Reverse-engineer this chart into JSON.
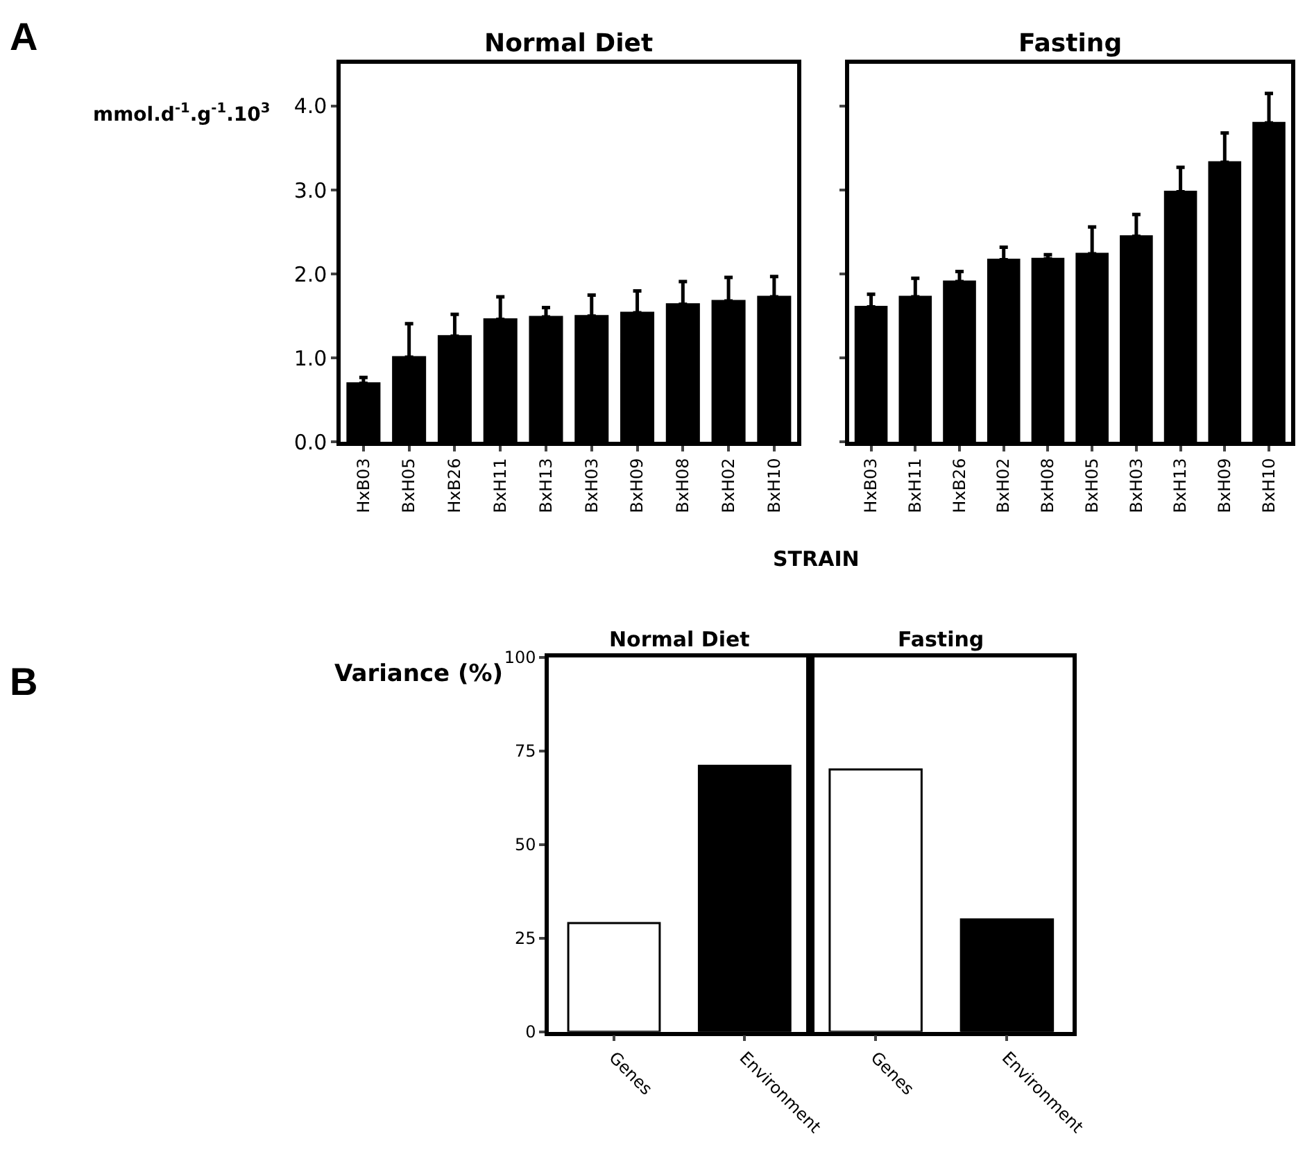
{
  "chart_data": [
    {
      "type": "bar",
      "title": "Normal Diet",
      "ylabel": "mmol.d$^{-1}$.g$^{-1}$.10$^{3}$",
      "xlabel": "STRAIN",
      "annotations": [
        "A"
      ],
      "categories": [
        "HxB03",
        "BxH05",
        "HxB26",
        "BxH11",
        "BxH13",
        "BxH03",
        "BxH09",
        "BxH08",
        "BxH02",
        "BxH10"
      ],
      "values": [
        0.7,
        1.01,
        1.26,
        1.46,
        1.49,
        1.5,
        1.54,
        1.64,
        1.68,
        1.73
      ],
      "errors": [
        [
          0.7,
          0.77
        ],
        [
          1.01,
          1.41
        ],
        [
          1.26,
          1.52
        ],
        [
          1.46,
          1.73
        ],
        [
          1.49,
          1.6
        ],
        [
          1.5,
          1.75
        ],
        [
          1.54,
          1.8
        ],
        [
          1.64,
          1.91
        ],
        [
          1.68,
          1.96
        ],
        [
          1.73,
          1.97
        ]
      ],
      "color": "#000000",
      "ylim": [
        0,
        4.5
      ],
      "yticks": [
        {
          "value": 0,
          "label": "0.0"
        },
        {
          "value": 1,
          "label": "1.0"
        },
        {
          "value": 2,
          "label": "2.0"
        },
        {
          "value": 3,
          "label": "3.0"
        },
        {
          "value": 4,
          "label": "4.0"
        }
      ]
    },
    {
      "type": "bar",
      "title": "Fasting",
      "tick_labels": "x",
      "categories": [
        "HxB03",
        "BxH11",
        "HxB26",
        "BxH02",
        "BxH08",
        "BxH05",
        "BxH03",
        "BxH13",
        "BxH09",
        "BxH10"
      ],
      "values": [
        1.61,
        1.73,
        1.91,
        2.17,
        2.18,
        2.24,
        2.45,
        2.98,
        3.33,
        3.8
      ],
      "errors": [
        [
          1.61,
          1.76
        ],
        [
          1.73,
          1.95
        ],
        [
          1.91,
          2.03
        ],
        [
          2.17,
          2.32
        ],
        [
          2.18,
          2.23
        ],
        [
          2.24,
          2.56
        ],
        [
          2.45,
          2.71
        ],
        [
          2.98,
          3.27
        ],
        [
          3.33,
          3.68
        ],
        [
          3.8,
          4.15
        ]
      ],
      "color": "#000000",
      "ylim": [
        0,
        4.5
      ],
      "yticks": [
        {
          "value": 0,
          "label": null
        },
        {
          "value": 1,
          "label": null
        },
        {
          "value": 2,
          "label": null
        },
        {
          "value": 3,
          "label": null
        },
        {
          "value": 4,
          "label": null
        }
      ]
    },
    {
      "type": "bar",
      "title": "Normal Diet",
      "ylabel": "Variance (%)",
      "annotations": [
        "B"
      ],
      "categories": [
        "Genes",
        "Environment"
      ],
      "values": [
        29,
        71
      ],
      "colors": [
        "#ffffff",
        "#000000"
      ],
      "ylim": [
        0,
        100
      ],
      "yticks": [
        0,
        25,
        50,
        75,
        100
      ]
    },
    {
      "type": "bar",
      "title": "Fasting",
      "tick_labels": "x",
      "categories": [
        "Genes",
        "Environment"
      ],
      "values": [
        70,
        30
      ],
      "colors": [
        "#ffffff",
        "#000000"
      ],
      "ylim": [
        0,
        100
      ]
    }
  ]
}
